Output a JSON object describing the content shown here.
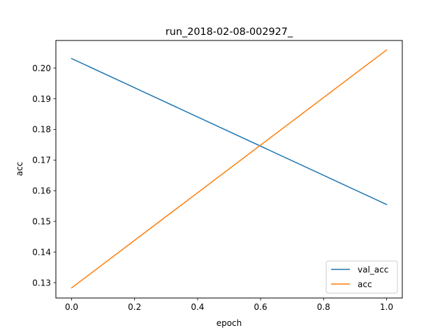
{
  "chart_data": {
    "type": "line",
    "title": "run_2018-02-08-002927_",
    "xlabel": "epoch",
    "ylabel": "acc",
    "xlim": [
      -0.05,
      1.05
    ],
    "ylim": [
      0.125,
      0.209
    ],
    "xticks": [
      0.0,
      0.2,
      0.4,
      0.6,
      0.8,
      1.0
    ],
    "xtick_labels": [
      "0.0",
      "0.2",
      "0.4",
      "0.6",
      "0.8",
      "1.0"
    ],
    "yticks": [
      0.13,
      0.14,
      0.15,
      0.16,
      0.17,
      0.18,
      0.19,
      0.2
    ],
    "ytick_labels": [
      "0.13",
      "0.14",
      "0.15",
      "0.16",
      "0.17",
      "0.18",
      "0.19",
      "0.20"
    ],
    "grid": false,
    "legend_position": "lower-right",
    "series": [
      {
        "name": "val_acc",
        "color": "#1f77b4",
        "x": [
          0,
          1
        ],
        "y": [
          0.2031,
          0.1555
        ]
      },
      {
        "name": "acc",
        "color": "#ff7f0e",
        "x": [
          0,
          1
        ],
        "y": [
          0.1283,
          0.2059
        ]
      }
    ]
  }
}
